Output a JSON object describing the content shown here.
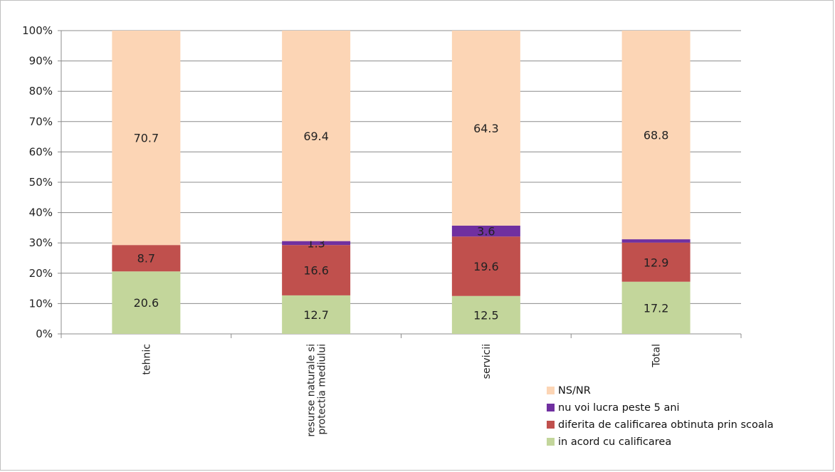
{
  "chart_data": {
    "type": "bar",
    "stacked": true,
    "percent_stacked": true,
    "categories": [
      "tehnic",
      "resurse naturale si protectia mediului",
      "servicii",
      "Total"
    ],
    "category_label_lines": [
      [
        "tehnic"
      ],
      [
        "resurse naturale si",
        "protectia mediului"
      ],
      [
        "servicii"
      ],
      [
        "Total"
      ]
    ],
    "series": [
      {
        "name": "in acord cu calificarea",
        "color": "#c3d69b",
        "values": [
          20.6,
          12.7,
          12.5,
          17.2
        ]
      },
      {
        "name": "diferita de calificarea obtinuta prin scoala",
        "color": "#c0504d",
        "values": [
          8.7,
          16.6,
          19.6,
          12.9
        ]
      },
      {
        "name": "nu voi lucra peste 5 ani",
        "color": "#7030a0",
        "values": [
          0,
          1.3,
          3.6,
          1.1
        ]
      },
      {
        "name": "NS/NR",
        "color": "#fcd5b5",
        "values": [
          70.7,
          69.4,
          64.3,
          68.8
        ]
      }
    ],
    "data_labels": [
      [
        "20.6",
        "12.7",
        "12.5",
        "17.2"
      ],
      [
        "8.7",
        "16.6",
        "19.6",
        "12.9"
      ],
      [
        "",
        "1.3",
        "3.6",
        "1.1"
      ],
      [
        "70.7",
        "69.4",
        "64.3",
        "68.8"
      ]
    ],
    "legend_order": [
      "NS/NR",
      "nu voi lucra peste 5 ani",
      "diferita de calificarea obtinuta prin scoala",
      "in acord cu calificarea"
    ],
    "y_ticks": [
      "0%",
      "10%",
      "20%",
      "30%",
      "40%",
      "50%",
      "60%",
      "70%",
      "80%",
      "90%",
      "100%"
    ],
    "ylim": [
      0,
      100
    ],
    "grid": true,
    "legend_position": "bottom-right",
    "title": "",
    "xlabel": "",
    "ylabel": ""
  }
}
